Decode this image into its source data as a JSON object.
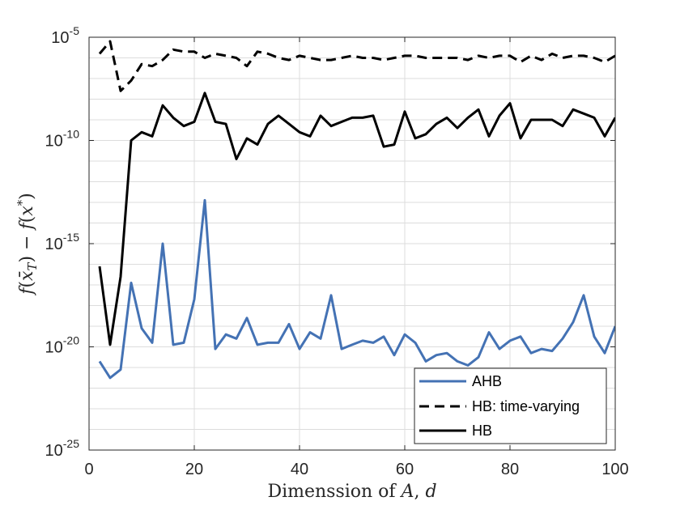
{
  "chart_data": {
    "type": "line",
    "title": "",
    "xlabel": "Dimenssion of A, d",
    "ylabel": "f(x̄_T) − f(x*)",
    "xscale": "linear",
    "yscale": "log",
    "xlim": [
      0,
      100
    ],
    "ylim_exponent": [
      -25,
      -5
    ],
    "grid": true,
    "legend_position": "bottom-right",
    "x_ticks": [
      0,
      20,
      40,
      60,
      80,
      100
    ],
    "x_tick_labels": [
      "0",
      "20",
      "40",
      "60",
      "80",
      "100"
    ],
    "y_tick_exponents": [
      -25,
      -20,
      -15,
      -10,
      -5
    ],
    "y_tick_labels": [
      {
        "base": "10",
        "exp": "-25"
      },
      {
        "base": "10",
        "exp": "-20"
      },
      {
        "base": "10",
        "exp": "-15"
      },
      {
        "base": "10",
        "exp": "-10"
      },
      {
        "base": "10",
        "exp": "-5"
      }
    ],
    "x": [
      2,
      4,
      6,
      8,
      10,
      12,
      14,
      16,
      18,
      20,
      22,
      24,
      26,
      28,
      30,
      32,
      34,
      36,
      38,
      40,
      42,
      44,
      46,
      48,
      50,
      52,
      54,
      56,
      58,
      60,
      62,
      64,
      66,
      68,
      70,
      72,
      74,
      76,
      78,
      80,
      82,
      84,
      86,
      88,
      90,
      92,
      94,
      96,
      98,
      100
    ],
    "series": [
      {
        "name": "AHB",
        "color": "#4472b4",
        "dash": "solid",
        "log10_values": [
          -20.7,
          -21.5,
          -21.1,
          -16.9,
          -19.1,
          -19.8,
          -15.0,
          -19.9,
          -19.8,
          -17.7,
          -12.9,
          -20.1,
          -19.4,
          -19.6,
          -18.6,
          -19.9,
          -19.8,
          -19.8,
          -18.9,
          -20.1,
          -19.3,
          -19.6,
          -17.5,
          -20.1,
          -19.9,
          -19.7,
          -19.8,
          -19.5,
          -20.4,
          -19.4,
          -19.8,
          -20.7,
          -20.4,
          -20.3,
          -20.7,
          -20.9,
          -20.5,
          -19.3,
          -20.1,
          -19.7,
          -19.5,
          -20.3,
          -20.1,
          -20.2,
          -19.6,
          -18.8,
          -17.5,
          -19.5,
          -20.3,
          -19.0
        ]
      },
      {
        "name": "HB: time-varying",
        "color": "#000000",
        "dash": "dashed",
        "log10_values": [
          -5.8,
          -5.2,
          -7.6,
          -7.1,
          -6.3,
          -6.4,
          -6.1,
          -5.6,
          -5.7,
          -5.7,
          -6.0,
          -5.8,
          -5.9,
          -6.0,
          -6.4,
          -5.7,
          -5.8,
          -6.0,
          -6.1,
          -5.9,
          -6.0,
          -6.1,
          -6.1,
          -6.0,
          -5.9,
          -6.0,
          -6.0,
          -6.1,
          -6.0,
          -5.9,
          -5.9,
          -6.0,
          -6.0,
          -6.0,
          -6.0,
          -6.1,
          -5.9,
          -6.0,
          -5.9,
          -5.9,
          -6.2,
          -5.9,
          -6.1,
          -5.8,
          -6.0,
          -5.9,
          -5.9,
          -6.0,
          -6.2,
          -5.9
        ]
      },
      {
        "name": "HB",
        "color": "#000000",
        "dash": "solid",
        "log10_values": [
          -16.1,
          -19.9,
          -16.6,
          -10.0,
          -9.6,
          -9.8,
          -8.3,
          -8.9,
          -9.3,
          -9.1,
          -7.7,
          -9.1,
          -9.2,
          -10.9,
          -9.9,
          -10.2,
          -9.2,
          -8.8,
          -9.2,
          -9.6,
          -9.8,
          -8.8,
          -9.3,
          -9.1,
          -8.9,
          -8.9,
          -8.8,
          -10.3,
          -10.2,
          -8.6,
          -9.9,
          -9.7,
          -9.2,
          -8.9,
          -9.4,
          -8.9,
          -8.5,
          -9.8,
          -8.8,
          -8.2,
          -9.9,
          -9.0,
          -9.0,
          -9.0,
          -9.3,
          -8.5,
          -8.7,
          -8.9,
          -9.8,
          -8.9
        ]
      }
    ]
  }
}
